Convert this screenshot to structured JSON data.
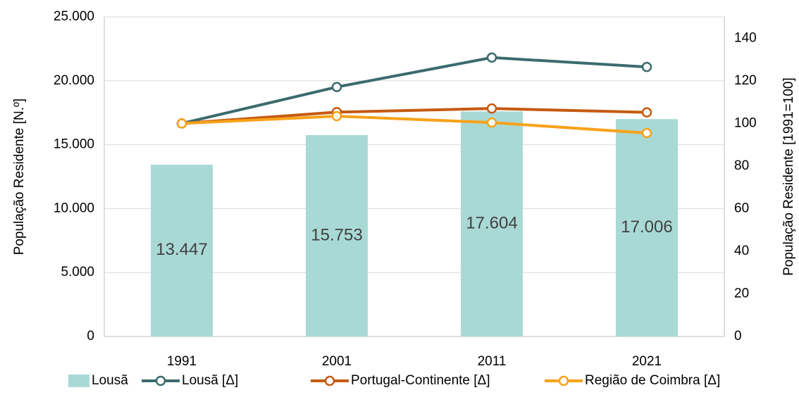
{
  "chart_data": {
    "type": "combo",
    "categories": [
      "1991",
      "2001",
      "2011",
      "2021"
    ],
    "ylabel": "População Residente [N.º]",
    "y2label": "População Residente [1991=100]",
    "ylim": [
      0,
      25000
    ],
    "yticks": [
      0,
      {
        "value": 5000,
        "label": "5.000"
      },
      {
        "value": 10000,
        "label": "10.000"
      },
      {
        "value": 15000,
        "label": "15.000"
      },
      {
        "value": 20000,
        "label": "20.000"
      },
      {
        "value": 25000,
        "label": "25.000"
      }
    ],
    "y2lim": [
      0,
      150
    ],
    "y2ticks": [
      0,
      20,
      40,
      60,
      80,
      100,
      120,
      140
    ],
    "grid": true,
    "legend": "bottom",
    "series": [
      {
        "name": "Lousã",
        "type": "bar",
        "color": "#a9d9d5",
        "values": [
          13447,
          15753,
          17604,
          17006
        ],
        "value_labels": [
          "13.447",
          "15.753",
          "17.604",
          "17.006"
        ]
      },
      {
        "name": "Lousã [Δ]",
        "type": "line",
        "axis": "y2",
        "color": "#3b6b6e",
        "values": [
          100,
          117.1,
          130.9,
          126.5
        ]
      },
      {
        "name": "Portugal-Continente [Δ]",
        "type": "line",
        "axis": "y2",
        "color": "#c55a11",
        "values": [
          100,
          105.3,
          107,
          105.2
        ]
      },
      {
        "name": "Região de Coimbra [Δ]",
        "type": "line",
        "axis": "y2",
        "color": "#f7a21b",
        "values": [
          100,
          103.4,
          100.4,
          95.5
        ]
      }
    ]
  }
}
